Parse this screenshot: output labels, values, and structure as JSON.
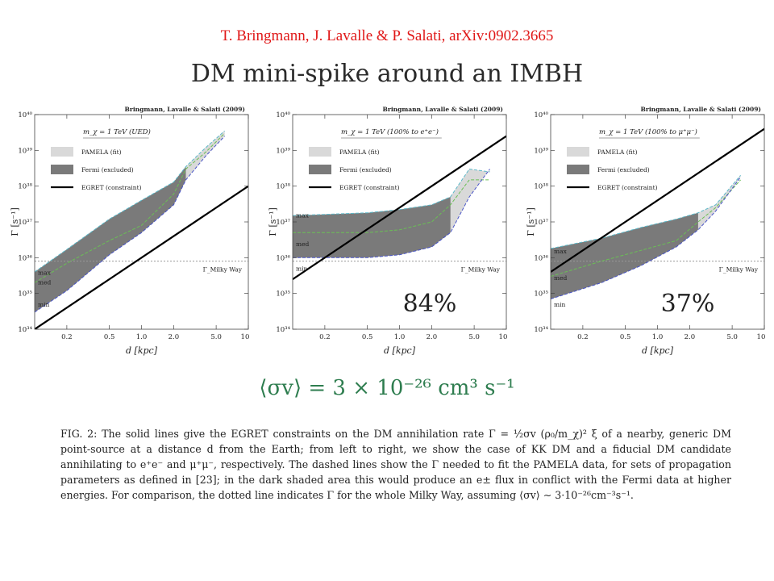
{
  "citation": "T. Bringmann, J. Lavalle & P. Salati, arXiv:0902.3665",
  "title": "DM mini-spike around an IMBH",
  "formula": "⟨σv⟩ = 3 × 10⁻²⁶ cm³ s⁻¹",
  "caption": "FIG. 2: The solid lines give the EGRET constraints on the DM annihilation rate Γ = ½σv (ρ₀/m_χ)² ξ of a nearby, generic DM point-source at a distance d from the Earth; from left to right, we show the case of KK DM and a fiducial DM candidate annihilating to e⁺e⁻ and μ⁺μ⁻, respectively. The dashed lines show the Γ needed to fit the PAMELA data, for sets of propagation parameters as defined in [23]; in the dark shaded area this would produce an e± flux in conflict with the Fermi data at higher energies. For comparison, the dotted line indicates Γ for the whole Milky Way, assuming ⟨σv⟩ ∼ 3·10⁻²⁶cm⁻³s⁻¹.",
  "colors": {
    "pamela": "#d9d9d9",
    "fermi": "#7a7a7a",
    "egret": "#000000",
    "max": "#5bb8c8",
    "med": "#6abf55",
    "min": "#4a55c8",
    "milky_way": "#999999"
  },
  "chart_data": [
    {
      "type": "area",
      "credit": "Bringmann, Lavalle & Salati (2009)",
      "subtitle": "m_χ = 1 TeV (UED)",
      "xlabel": "d [kpc]",
      "ylabel": "Γ [s⁻¹]",
      "xscale": "log",
      "yscale": "log",
      "xlim": [
        0.1,
        10
      ],
      "ylim": [
        1e+34,
        1e+40
      ],
      "xticks": [
        "0.2",
        "0.5",
        "1.0",
        "2.0",
        "5.0",
        "10.0"
      ],
      "yticks": [
        "10³⁴",
        "10³⁵",
        "10³⁶",
        "10³⁷",
        "10³⁸",
        "10³⁹",
        "10⁴⁰"
      ],
      "legend": [
        "PAMELA (fit)",
        "Fermi (excluded)",
        "EGRET (constraint)"
      ],
      "milky_way": {
        "label": "Γ_Milky Way",
        "value": 8e+35
      },
      "percent": "",
      "series": [
        {
          "name": "max",
          "x": [
            0.1,
            0.2,
            0.5,
            1,
            2,
            2.6,
            4,
            6
          ],
          "y": [
            4e+35,
            1.7e+36,
            1.2e+37,
            4e+37,
            1.3e+38,
            3.5e+38,
            1.2e+39,
            3.5e+39
          ]
        },
        {
          "name": "med",
          "x": [
            0.1,
            0.2,
            0.5,
            1,
            2,
            2.6,
            4,
            6
          ],
          "y": [
            2e+35,
            7e+35,
            3e+36,
            8e+36,
            6e+37,
            3e+38,
            9e+38,
            3e+39
          ]
        },
        {
          "name": "min",
          "x": [
            0.1,
            0.2,
            0.5,
            1,
            2,
            2.6,
            4,
            6
          ],
          "y": [
            3e+34,
            1.2e+35,
            1.2e+36,
            5e+36,
            3e+37,
            1.5e+38,
            7e+38,
            2.5e+39
          ]
        },
        {
          "name": "EGRET",
          "x": [
            0.1,
            10
          ],
          "y": [
            1e+34,
            1e+38
          ]
        }
      ],
      "fermi_until": 2.6,
      "labels": {
        "max": "max",
        "med": "med",
        "min": "min"
      },
      "label_y": {
        "max": 3e+35,
        "med": 3e+35,
        "min": 8e+34
      }
    },
    {
      "type": "area",
      "credit": "Bringmann, Lavalle & Salati (2009)",
      "subtitle": "m_χ = 1 TeV (100% to e⁺e⁻)",
      "xlabel": "d [kpc]",
      "ylabel": "Γ [s⁻¹]",
      "xscale": "log",
      "yscale": "log",
      "xlim": [
        0.1,
        10
      ],
      "ylim": [
        1e+34,
        1e+40
      ],
      "xticks": [
        "0.2",
        "0.5",
        "1.0",
        "2.0",
        "5.0",
        "10.0"
      ],
      "yticks": [
        "10³⁴",
        "10³⁵",
        "10³⁶",
        "10³⁷",
        "10³⁸",
        "10³⁹",
        "10⁴⁰"
      ],
      "legend": [
        "PAMELA (fit)",
        "Fermi (excluded)",
        "EGRET (constraint)"
      ],
      "milky_way": {
        "label": "Γ_Milky Way",
        "value": 8e+35
      },
      "percent": "84%",
      "series": [
        {
          "name": "max",
          "x": [
            0.1,
            0.5,
            1,
            2,
            3,
            4.5,
            7
          ],
          "y": [
            1.5e+37,
            1.8e+37,
            2.2e+37,
            3e+37,
            5e+37,
            3e+38,
            2.5e+38
          ]
        },
        {
          "name": "med",
          "x": [
            0.1,
            0.5,
            1,
            2,
            3,
            4.5,
            7
          ],
          "y": [
            5e+36,
            5e+36,
            6e+36,
            1e+37,
            3e+37,
            1.5e+38,
            1.5e+38
          ]
        },
        {
          "name": "min",
          "x": [
            0.1,
            0.5,
            1,
            2,
            3,
            4.5,
            7
          ],
          "y": [
            1e+36,
            1e+36,
            1.2e+36,
            2e+36,
            5e+36,
            5e+37,
            3e+38
          ]
        },
        {
          "name": "EGRET",
          "x": [
            0.1,
            10
          ],
          "y": [
            2.5e+35,
            2.5e+39
          ]
        }
      ],
      "fermi_until": 3,
      "labels": {
        "max": "max",
        "med": "med",
        "min": "min"
      },
      "label_y": {
        "max": 1.2e+37,
        "med": 3.5e+36,
        "min": 8e+35
      }
    },
    {
      "type": "area",
      "credit": "Bringmann, Lavalle & Salati (2009)",
      "subtitle": "m_χ = 1 TeV (100% to μ⁺μ⁻)",
      "xlabel": "d [kpc]",
      "ylabel": "Γ [s⁻¹]",
      "xscale": "log",
      "yscale": "log",
      "xlim": [
        0.1,
        10
      ],
      "ylim": [
        1e+34,
        1e+40
      ],
      "xticks": [
        "0.2",
        "0.5",
        "1.0",
        "2.0",
        "5.0",
        "10.0"
      ],
      "yticks": [
        "10³⁴",
        "10³⁵",
        "10³⁶",
        "10³⁷",
        "10³⁸",
        "10³⁹",
        "10⁴⁰"
      ],
      "legend": [
        "PAMELA (fit)",
        "Fermi (excluded)",
        "EGRET (constraint)"
      ],
      "milky_way": {
        "label": "Γ_Milky Way",
        "value": 8e+35
      },
      "percent": "37%",
      "series": [
        {
          "name": "max",
          "x": [
            0.1,
            0.3,
            0.7,
            1.5,
            2.4,
            3.5,
            6
          ],
          "y": [
            1.8e+36,
            3.5e+36,
            7e+36,
            1.2e+37,
            1.8e+37,
            3e+37,
            2e+38
          ]
        },
        {
          "name": "med",
          "x": [
            0.1,
            0.3,
            0.7,
            1.5,
            2.4,
            3.5,
            6
          ],
          "y": [
            3e+35,
            8e+35,
            1.6e+36,
            3e+36,
            1e+37,
            2.5e+37,
            1.5e+38
          ]
        },
        {
          "name": "min",
          "x": [
            0.1,
            0.3,
            0.7,
            1.5,
            2.4,
            3.5,
            6
          ],
          "y": [
            7e+34,
            2e+35,
            6e+35,
            2e+36,
            6e+36,
            2e+37,
            1.8e+38
          ]
        },
        {
          "name": "EGRET",
          "x": [
            0.1,
            10
          ],
          "y": [
            4e+35,
            4e+39
          ]
        }
      ],
      "fermi_until": 2.4,
      "labels": {
        "max": "max",
        "med": "med",
        "min": "min"
      },
      "label_y": {
        "max": 1.2e+36,
        "med": 4e+35,
        "min": 8e+34
      }
    }
  ]
}
